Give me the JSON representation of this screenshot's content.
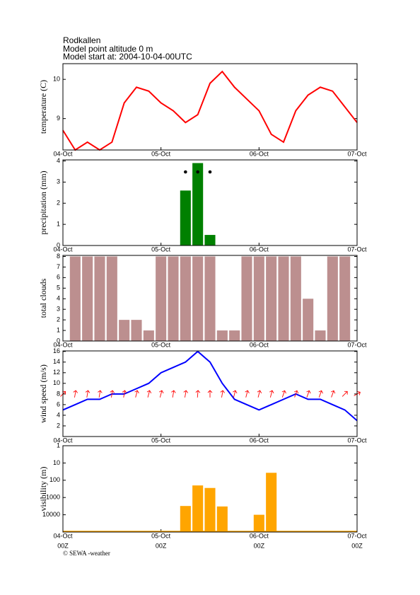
{
  "header": {
    "lines": [
      "Rodkallen",
      "Model point altitude  0 m",
      "Model start at: 2004-10-04-00UTC"
    ]
  },
  "footer": "© SEWA -weather",
  "chart_data": [
    {
      "type": "line",
      "ylabel": "temperature (C)",
      "color": "#ff0000",
      "x": [
        0,
        3,
        6,
        9,
        12,
        15,
        18,
        21,
        24,
        27,
        30,
        33,
        36,
        39,
        42,
        45,
        48,
        51,
        54,
        57,
        60,
        63,
        66,
        69,
        72
      ],
      "values": [
        8.7,
        8.2,
        8.4,
        8.2,
        8.4,
        9.4,
        9.8,
        9.7,
        9.4,
        9.2,
        8.9,
        9.1,
        9.9,
        10.2,
        9.8,
        9.5,
        9.2,
        8.6,
        8.4,
        9.2,
        9.6,
        9.8,
        9.7,
        9.3,
        8.9
      ],
      "xlim": [
        0,
        72
      ],
      "ylim": [
        8.2,
        10.4
      ],
      "yticks": [
        9,
        10
      ],
      "xticks": [
        {
          "value": 0,
          "label": "04-Oct"
        },
        {
          "value": 24,
          "label": "05-Oct"
        },
        {
          "value": 48,
          "label": "06-Oct"
        },
        {
          "value": 72,
          "label": "07-Oct"
        }
      ]
    },
    {
      "type": "bar",
      "ylabel": "precipitation (mm)",
      "color": "#008000",
      "x": [
        30,
        33,
        36
      ],
      "values": [
        2.6,
        3.9,
        0.5
      ],
      "xlim": [
        0,
        72
      ],
      "ylim": [
        0,
        4.05
      ],
      "yticks": [
        0,
        1,
        2,
        3,
        4
      ],
      "xticks": [
        {
          "value": 0,
          "label": "04-Oct"
        },
        {
          "value": 24,
          "label": "05-Oct"
        },
        {
          "value": 48,
          "label": "06-Oct"
        },
        {
          "value": 72,
          "label": "07-Oct"
        }
      ]
    },
    {
      "type": "bar",
      "ylabel": "total clouds",
      "color": "#bc8f8f",
      "x": [
        3,
        6,
        9,
        12,
        15,
        18,
        21,
        24,
        27,
        30,
        33,
        36,
        39,
        42,
        45,
        48,
        51,
        54,
        57,
        60,
        63,
        66,
        69
      ],
      "values": [
        8,
        8,
        8,
        8,
        2,
        2,
        1,
        8,
        8,
        8,
        8,
        8,
        1,
        1,
        8,
        8,
        8,
        8,
        8,
        4,
        1,
        8,
        8
      ],
      "xlim": [
        0,
        72
      ],
      "ylim": [
        0,
        8.1
      ],
      "yticks": [
        0,
        1,
        2,
        3,
        4,
        5,
        6,
        7,
        8
      ],
      "xticks": [
        {
          "value": 0,
          "label": "04-Oct"
        },
        {
          "value": 24,
          "label": "05-Oct"
        },
        {
          "value": 48,
          "label": "06-Oct"
        },
        {
          "value": 72,
          "label": "07-Oct"
        }
      ]
    },
    {
      "type": "line",
      "ylabel": "wind speed (m/s)",
      "color": "#0000ff",
      "x": [
        0,
        3,
        6,
        9,
        12,
        15,
        18,
        21,
        24,
        27,
        30,
        33,
        36,
        39,
        42,
        45,
        48,
        51,
        54,
        57,
        60,
        63,
        66,
        69,
        72
      ],
      "values": [
        5,
        6,
        7,
        7,
        8,
        8,
        9,
        10,
        12,
        13,
        14,
        16,
        14,
        10,
        7,
        6,
        5,
        6,
        7,
        8,
        7,
        7,
        6,
        5,
        3
      ],
      "arrow_angles": [
        45,
        10,
        10,
        10,
        10,
        10,
        15,
        15,
        15,
        10,
        10,
        5,
        0,
        10,
        15,
        15,
        15,
        15,
        20,
        20,
        20,
        20,
        20,
        45,
        60
      ],
      "arrow_color": "#ff0000",
      "xlim": [
        0,
        72
      ],
      "ylim": [
        0,
        16.1
      ],
      "yticks": [
        2,
        4,
        6,
        8,
        10,
        12,
        14,
        16
      ],
      "xticks": [
        {
          "value": 0,
          "label": "04-Oct"
        },
        {
          "value": 24,
          "label": "05-Oct"
        },
        {
          "value": 48,
          "label": "06-Oct"
        },
        {
          "value": 72,
          "label": "07-Oct"
        }
      ]
    },
    {
      "type": "bar",
      "ylabel": "visibility (m)",
      "color": "#ffa500",
      "log": true,
      "x": [
        30,
        33,
        36,
        39,
        48,
        51
      ],
      "values": [
        3100,
        200,
        280,
        3300,
        10000,
        37
      ],
      "xlim": [
        0,
        72
      ],
      "ylim": [
        100000,
        1
      ],
      "yticks": [
        1,
        10,
        100,
        1000,
        10000
      ],
      "xticks": [
        {
          "value": 0,
          "label": "04-Oct",
          "sublabel": "00Z"
        },
        {
          "value": 24,
          "label": "05-Oct",
          "sublabel": "00Z"
        },
        {
          "value": 48,
          "label": "06-Oct",
          "sublabel": "00Z"
        },
        {
          "value": 72,
          "label": "07-Oct",
          "sublabel": "00Z"
        }
      ]
    }
  ]
}
